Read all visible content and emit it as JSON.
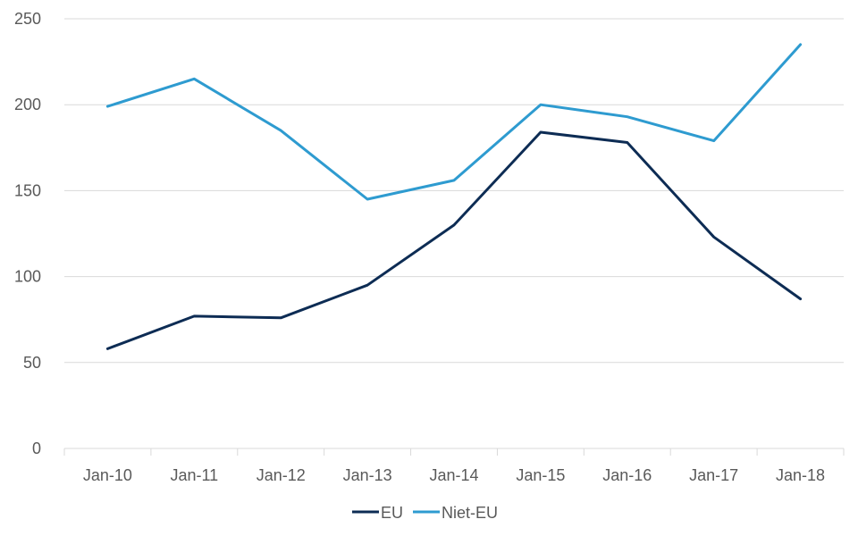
{
  "chart_data": {
    "type": "line",
    "title": "",
    "xlabel": "",
    "ylabel": "",
    "categories": [
      "Jan-10",
      "Jan-11",
      "Jan-12",
      "Jan-13",
      "Jan-14",
      "Jan-15",
      "Jan-16",
      "Jan-17",
      "Jan-18"
    ],
    "ylim": [
      0,
      250
    ],
    "yticks": [
      0,
      50,
      100,
      150,
      200,
      250
    ],
    "grid": true,
    "legend_position": "bottom",
    "series": [
      {
        "name": "EU",
        "color": "#0d2c54",
        "values": [
          58,
          77,
          76,
          95,
          130,
          184,
          178,
          123,
          87
        ]
      },
      {
        "name": "Niet-EU",
        "color": "#2e9bd0",
        "values": [
          199,
          215,
          185,
          145,
          156,
          200,
          193,
          179,
          235
        ]
      }
    ]
  }
}
